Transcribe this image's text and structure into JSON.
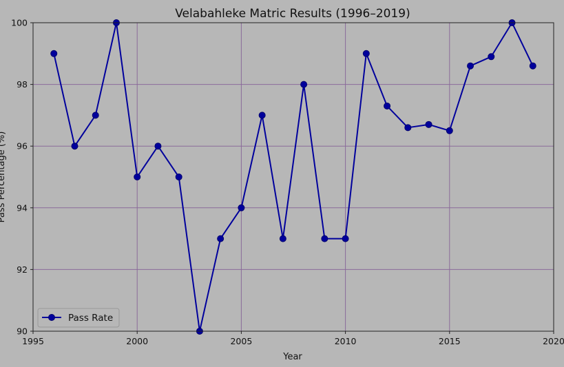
{
  "chart_data": {
    "type": "line",
    "title": "Velabahleke Matric Results (1996–2019)",
    "xlabel": "Year",
    "ylabel": "Pass Percentage (%)",
    "xlim": [
      1995,
      2020
    ],
    "ylim": [
      90,
      100
    ],
    "x_ticks": [
      1995,
      2000,
      2005,
      2010,
      2015,
      2020
    ],
    "y_ticks": [
      90,
      92,
      94,
      96,
      98,
      100
    ],
    "grid": true,
    "legend_position": "lower-left",
    "series": [
      {
        "name": "Pass Rate",
        "color": "#00009c",
        "marker": "circle",
        "x": [
          1996,
          1997,
          1998,
          1999,
          2000,
          2001,
          2002,
          2003,
          2004,
          2005,
          2006,
          2007,
          2008,
          2009,
          2010,
          2011,
          2012,
          2013,
          2014,
          2015,
          2016,
          2017,
          2018,
          2019
        ],
        "y": [
          99,
          96,
          97,
          100,
          95,
          96,
          95,
          90,
          93,
          94,
          97,
          93,
          98,
          93,
          93,
          99,
          97.3,
          96.6,
          96.7,
          96.5,
          98.6,
          98.9,
          100,
          98.6
        ]
      }
    ]
  },
  "colors": {
    "background": "#b7b7b7",
    "grid": "#8a6a9a",
    "axis": "#222222",
    "line": "#00009c",
    "marker_edge": "#00006e"
  }
}
